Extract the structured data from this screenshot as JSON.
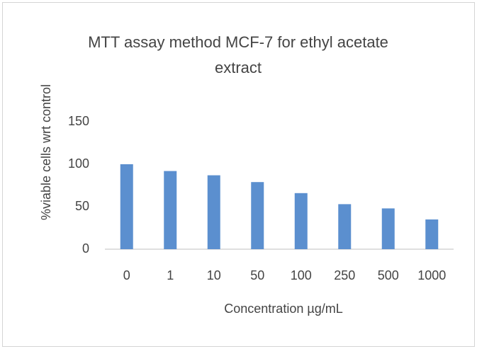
{
  "chart_data": {
    "type": "bar",
    "title": "MTT assay method MCF-7 for ethyl acetate extract",
    "x_label": "Concentration µg/mL",
    "y_label": "%viable cells wrt control",
    "categories": [
      "0",
      "1",
      "10",
      "50",
      "100",
      "250",
      "500",
      "1000"
    ],
    "values": [
      100,
      92,
      87,
      79,
      66,
      53,
      48,
      35
    ],
    "color": "#5b8fcf",
    "ylim": [
      0,
      150
    ],
    "yticks": [
      0,
      50,
      100,
      150
    ],
    "grid": false
  }
}
